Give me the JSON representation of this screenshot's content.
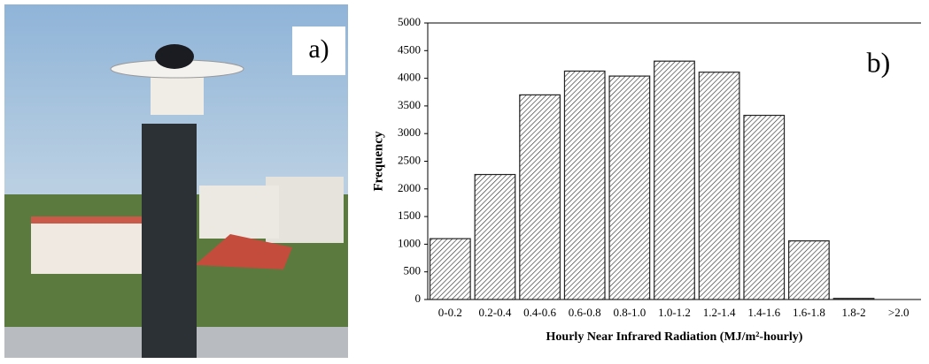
{
  "photo": {
    "label": "a)"
  },
  "chart_data": {
    "type": "bar",
    "annotation": "b)",
    "x_label": "Hourly Near Infrared Radiation  (MJ/m²-hourly)",
    "y_label": "Frequency",
    "categories": [
      "0-0.2",
      "0.2-0.4",
      "0.4-0.6",
      "0.6-0.8",
      "0.8-1.0",
      "1.0-1.2",
      "1.2-1.4",
      "1.4-1.6",
      "1.6-1.8",
      "1.8-2",
      ">2.0"
    ],
    "values": [
      1100,
      2260,
      3700,
      4130,
      4040,
      4310,
      4110,
      3330,
      1060,
      20,
      0
    ],
    "color": "#222222",
    "ylim": [
      0,
      5000
    ],
    "yticks": [
      0,
      500,
      1000,
      1500,
      2000,
      2500,
      3000,
      3500,
      4000,
      4500,
      5000
    ]
  }
}
